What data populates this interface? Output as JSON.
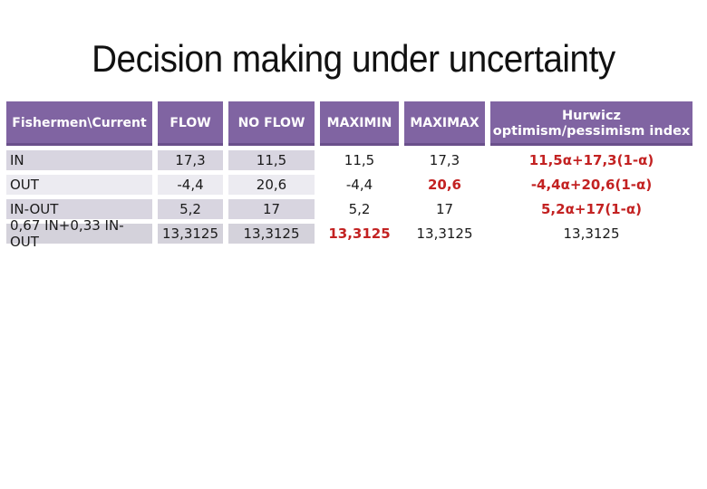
{
  "slide": {
    "title": "Decision making under uncertainty"
  },
  "table": {
    "columns": [
      "Fishermen\\Current",
      "FLOW",
      "NO FLOW",
      "MAXIMIN",
      "MAXIMAX",
      "Hurwicz optimism/pessimism index"
    ],
    "rows": [
      {
        "cells": [
          "IN",
          "17,3",
          "11,5",
          "11,5",
          "17,3",
          "11,5α+17,3(1-α)"
        ]
      },
      {
        "cells": [
          "OUT",
          "-4,4",
          "20,6",
          "-4,4",
          "20,6",
          "-4,4α+20,6(1-α)"
        ]
      },
      {
        "cells": [
          "IN-OUT",
          "5,2",
          "17",
          "5,2",
          "17",
          "5,2α+17(1-α)"
        ]
      },
      {
        "cells": [
          "0,67 IN+0,33 IN-OUT",
          "13,3125",
          "13,3125",
          "13,3125",
          "13,3125",
          "13,3125"
        ]
      }
    ]
  },
  "colors": {
    "header_bg": "#8064A2",
    "band_dark": "#D8D5E0",
    "band_light": "#ECEBF1",
    "band_total": "#D4D2DB",
    "highlight_red": "#C32222",
    "title_text": "#111111",
    "body_text": "#1A1A1A"
  }
}
